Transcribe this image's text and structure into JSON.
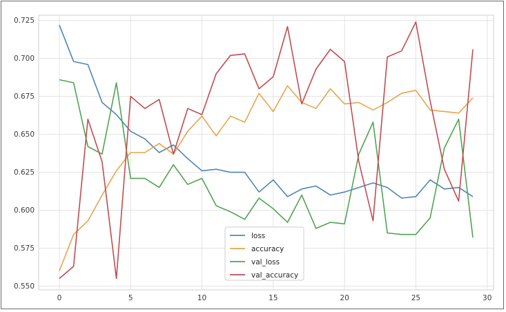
{
  "chart_data": {
    "type": "line",
    "x": [
      0,
      1,
      2,
      3,
      4,
      5,
      6,
      7,
      8,
      9,
      10,
      11,
      12,
      13,
      14,
      15,
      16,
      17,
      18,
      19,
      20,
      21,
      22,
      23,
      24,
      25,
      26,
      27,
      28,
      29
    ],
    "xlim": [
      -1.45,
      30.45
    ],
    "ylim": [
      0.5475,
      0.7285
    ],
    "xticks": [
      0,
      5,
      10,
      15,
      20,
      25,
      30
    ],
    "yticks": [
      0.55,
      0.575,
      0.6,
      0.625,
      0.65,
      0.675,
      0.7,
      0.725
    ],
    "grid": true,
    "legend_position": "lower-center",
    "series": [
      {
        "name": "loss",
        "color": "#4c85b8",
        "values": [
          0.722,
          0.698,
          0.696,
          0.671,
          0.663,
          0.652,
          0.647,
          0.638,
          0.643,
          0.634,
          0.626,
          0.627,
          0.625,
          0.625,
          0.612,
          0.62,
          0.609,
          0.614,
          0.616,
          0.61,
          0.612,
          0.615,
          0.618,
          0.615,
          0.608,
          0.609,
          0.62,
          0.614,
          0.615,
          0.609
        ]
      },
      {
        "name": "accuracy",
        "color": "#e8a44c",
        "values": [
          0.56,
          0.584,
          0.593,
          0.61,
          0.626,
          0.638,
          0.638,
          0.644,
          0.637,
          0.652,
          0.662,
          0.649,
          0.662,
          0.658,
          0.677,
          0.665,
          0.682,
          0.671,
          0.667,
          0.68,
          0.67,
          0.671,
          0.666,
          0.671,
          0.677,
          0.679,
          0.666,
          0.665,
          0.664,
          0.674
        ]
      },
      {
        "name": "val_loss",
        "color": "#4fa44f",
        "values": [
          0.686,
          0.684,
          0.642,
          0.637,
          0.684,
          0.621,
          0.621,
          0.615,
          0.63,
          0.617,
          0.621,
          0.603,
          0.599,
          0.594,
          0.608,
          0.601,
          0.592,
          0.61,
          0.588,
          0.592,
          0.591,
          0.637,
          0.658,
          0.585,
          0.584,
          0.584,
          0.595,
          0.641,
          0.66,
          0.582
        ]
      },
      {
        "name": "val_accuracy",
        "color": "#c44a4d",
        "values": [
          0.555,
          0.563,
          0.66,
          0.632,
          0.555,
          0.675,
          0.667,
          0.673,
          0.637,
          0.667,
          0.663,
          0.69,
          0.702,
          0.703,
          0.68,
          0.688,
          0.721,
          0.67,
          0.693,
          0.706,
          0.698,
          0.632,
          0.593,
          0.701,
          0.705,
          0.724,
          0.672,
          0.627,
          0.606,
          0.706
        ]
      }
    ]
  }
}
